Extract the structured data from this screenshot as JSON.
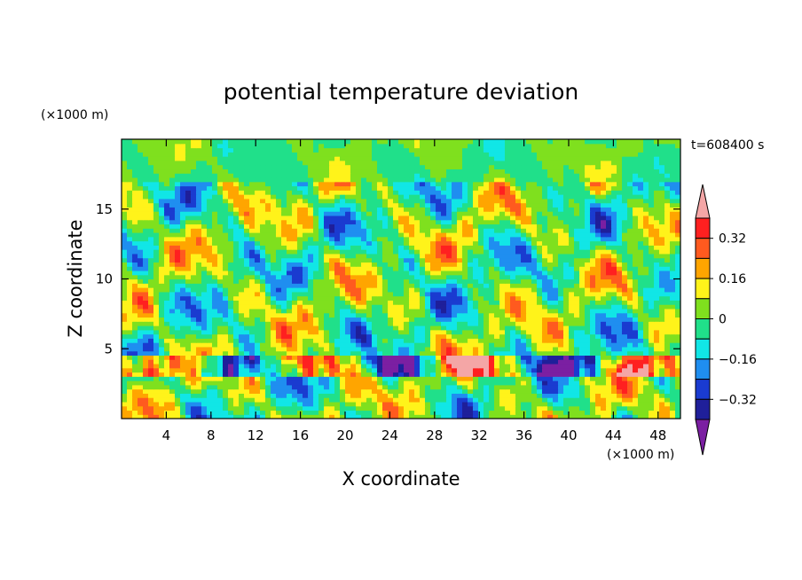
{
  "chart_data": {
    "type": "heatmap",
    "title": "potential temperature deviation",
    "time_label": "t=608400 s",
    "xlabel": "X coordinate",
    "ylabel": "Z coordinate",
    "x_unit": "(×1000 m)",
    "y_unit": "(×1000 m)",
    "xlim": [
      0,
      50
    ],
    "ylim": [
      0,
      20
    ],
    "x_ticks": [
      4,
      8,
      12,
      16,
      20,
      24,
      28,
      32,
      36,
      40,
      44,
      48
    ],
    "y_ticks": [
      5,
      10,
      15
    ],
    "colorbar": {
      "levels": [
        -0.4,
        -0.32,
        -0.24,
        -0.16,
        -0.08,
        0,
        0.08,
        0.16,
        0.24,
        0.32,
        0.4
      ],
      "labels": [
        "0.32",
        "0.16",
        "0",
        "−0.16",
        "−0.32"
      ],
      "label_values": [
        0.32,
        0.16,
        0,
        -0.16,
        -0.32
      ],
      "colors": [
        "#7b1fa2",
        "#1f1f9a",
        "#1a3bd0",
        "#1f8ef0",
        "#11e6e6",
        "#20e08a",
        "#7fe01e",
        "#fff31a",
        "#ffa500",
        "#ff5a1f",
        "#ff2020",
        "#f4a6a6"
      ],
      "over_color": "#f4a6a6",
      "under_color": "#7b1fa2"
    }
  }
}
